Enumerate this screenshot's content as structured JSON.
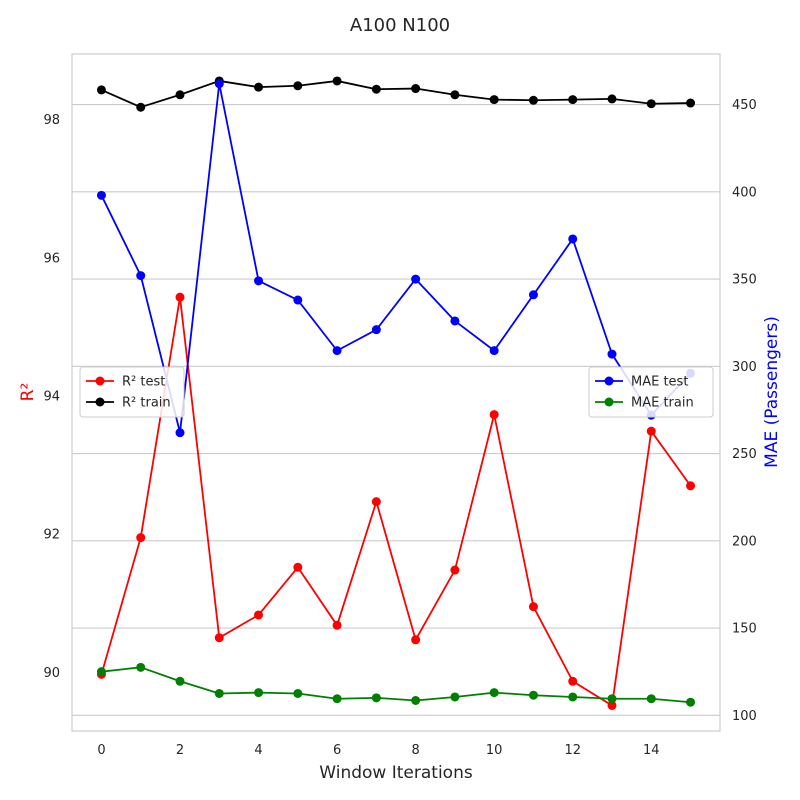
{
  "chart_data": {
    "type": "line",
    "title": "A100 N100",
    "xlabel": "Window Iterations",
    "ylabel_left": "R²",
    "ylabel_right": "MAE (Passengers)",
    "x": [
      0,
      1,
      2,
      3,
      4,
      5,
      6,
      7,
      8,
      9,
      10,
      11,
      12,
      13,
      14,
      15
    ],
    "xticks": [
      "0",
      "2",
      "4",
      "6",
      "8",
      "10",
      "12",
      "14"
    ],
    "xlim": [
      -0.75,
      15.75
    ],
    "left_axis": {
      "ylim": [
        89.15,
        98.95
      ],
      "ticks": [
        "90",
        "92",
        "94",
        "96",
        "98"
      ],
      "label_color": "#ff0000",
      "series": [
        {
          "name": "R² test",
          "color": "#ff0000",
          "values": [
            89.97,
            91.95,
            95.43,
            90.5,
            90.83,
            91.52,
            90.68,
            92.47,
            90.47,
            91.48,
            93.73,
            90.95,
            89.87,
            89.52,
            93.49,
            92.7
          ]
        },
        {
          "name": "R² train",
          "color": "#000000",
          "values": [
            98.43,
            98.18,
            98.36,
            98.56,
            98.47,
            98.49,
            98.56,
            98.44,
            98.45,
            98.36,
            98.29,
            98.28,
            98.29,
            98.3,
            98.23,
            98.24
          ]
        }
      ],
      "legend": "center-left"
    },
    "right_axis": {
      "ylim": [
        91.0,
        479.0
      ],
      "ticks": [
        "100",
        "150",
        "200",
        "250",
        "300",
        "350",
        "400",
        "450"
      ],
      "label_color": "#0000ff",
      "series": [
        {
          "name": "MAE test",
          "color": "#0000ff",
          "values": [
            398,
            352,
            262,
            462,
            349,
            338,
            309,
            321,
            350,
            326,
            309,
            341,
            373,
            307,
            272,
            296
          ]
        },
        {
          "name": "MAE train",
          "color": "#008000",
          "values": [
            125,
            127.5,
            119.5,
            112.5,
            113,
            112.5,
            109.5,
            110,
            108.5,
            110.5,
            113,
            111.5,
            110.5,
            109.5,
            109.5,
            107.5
          ]
        }
      ],
      "legend": "center-right"
    },
    "grid": true
  }
}
